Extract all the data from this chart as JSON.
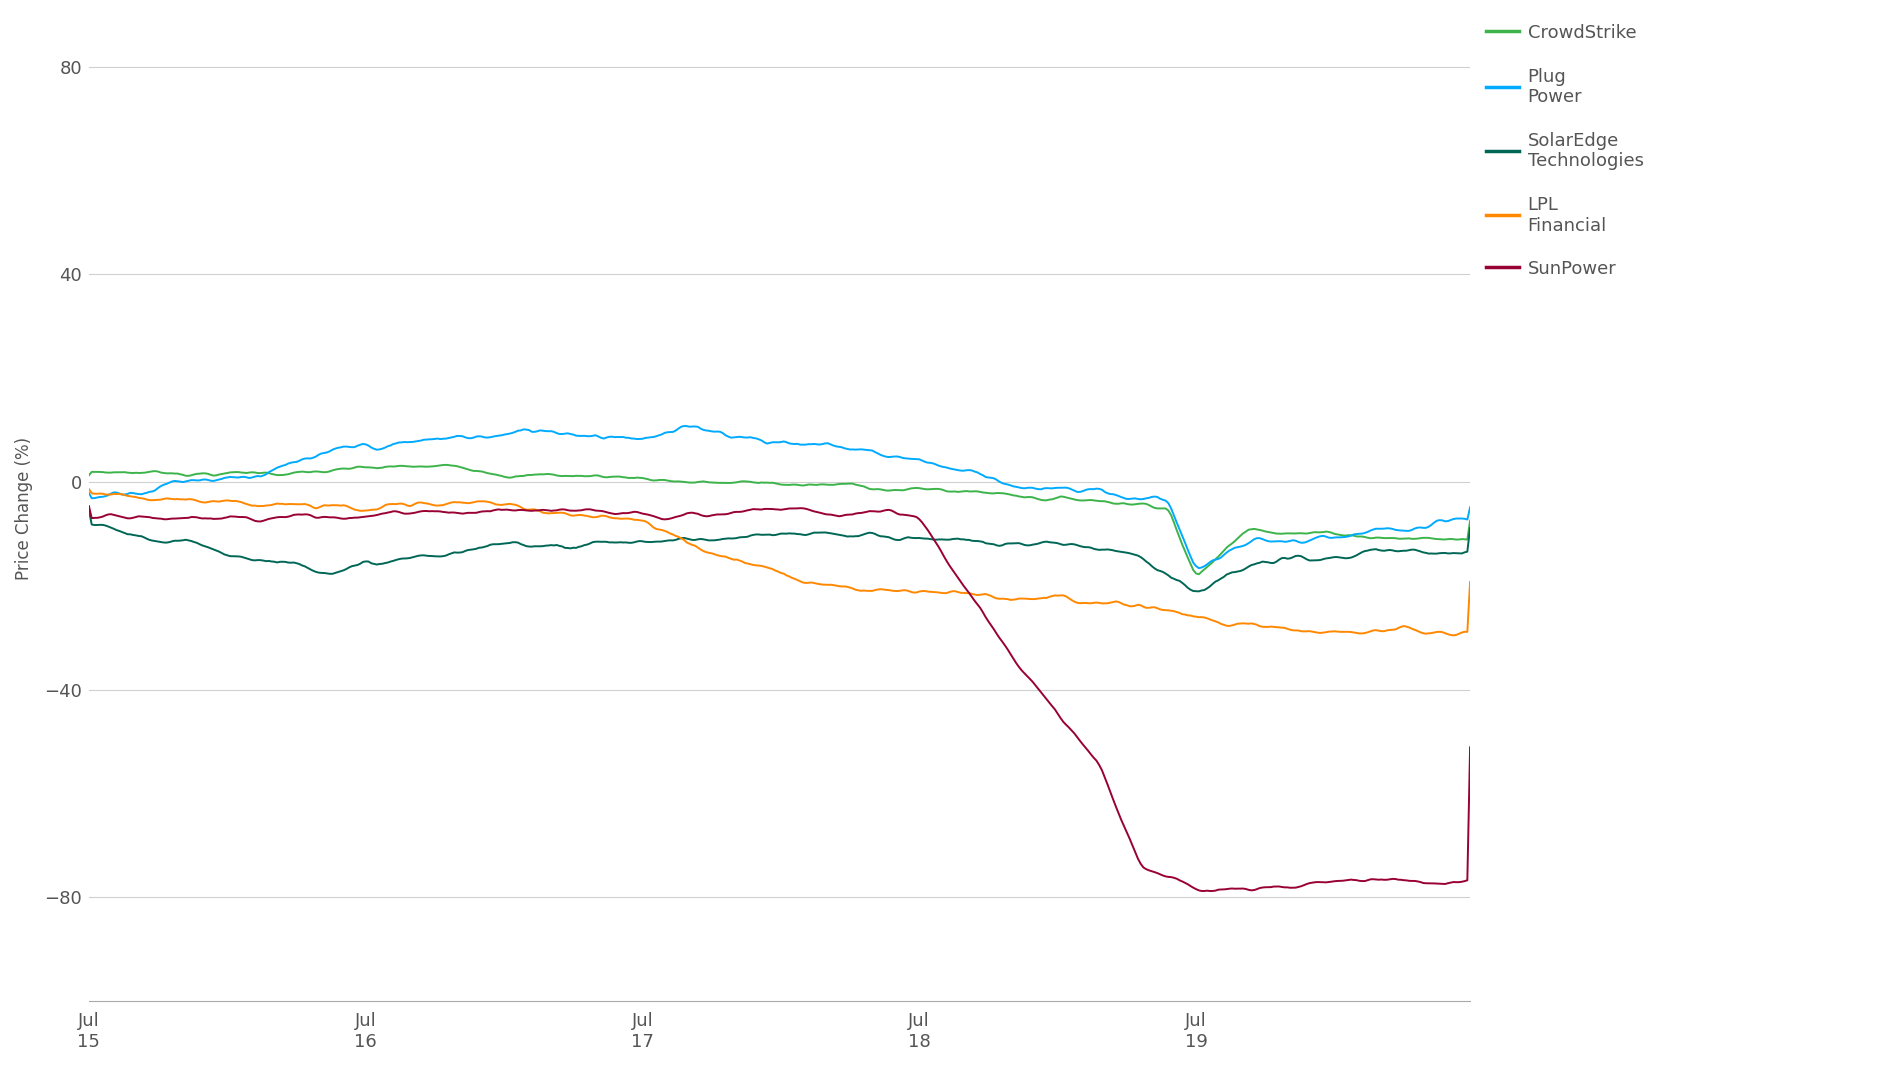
{
  "title": "",
  "ylabel": "Price Change (%)",
  "xlabel": "",
  "background_color": "#ffffff",
  "grid_color": "#d0d0d0",
  "ylim": [
    -100,
    90
  ],
  "yticks": [
    -80,
    -40,
    0,
    40,
    80
  ],
  "xtick_labels": [
    "Jul\n15",
    "Jul\n16",
    "Jul\n17",
    "Jul\n18",
    "Jul\n19"
  ],
  "total_points": 500,
  "series": [
    {
      "name": "CrowdStrike",
      "color": "#3cb44b",
      "legend_label": "CrowdStrike"
    },
    {
      "name": "Plug Power",
      "color": "#00aaff",
      "legend_label": "Plug\nPower"
    },
    {
      "name": "SolarEdge Technologies",
      "color": "#006655",
      "legend_label": "SolarEdge\nTechnologies"
    },
    {
      "name": "LPL Financial",
      "color": "#ff8800",
      "legend_label": "LPL\nFinancial"
    },
    {
      "name": "SunPower",
      "color": "#990033",
      "legend_label": "SunPower"
    }
  ]
}
